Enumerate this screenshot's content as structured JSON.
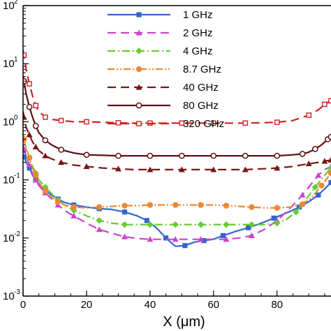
{
  "chart_data": {
    "type": "line",
    "title": "",
    "xlabel": "X (μm)",
    "ylabel": "",
    "x_scale": "linear",
    "y_scale": "log",
    "xlim": [
      0,
      97
    ],
    "ylim": [
      0.001,
      100
    ],
    "grid": false,
    "legend_position": "top-center",
    "x_ticks": [
      "0",
      "20",
      "40",
      "60",
      "80"
    ],
    "x_tick_values": [
      0,
      20,
      40,
      60,
      80
    ],
    "y_ticks": [
      "10",
      "10",
      "10",
      "10",
      "10",
      "10"
    ],
    "y_tick_exponents": [
      "-3",
      "-2",
      "-1",
      "0",
      "1",
      "2"
    ],
    "y_tick_values": [
      0.001,
      0.01,
      0.1,
      1,
      10,
      100
    ],
    "series": [
      {
        "name": "1 GHz",
        "color": "#3366cc",
        "dash": "solid",
        "marker": "square",
        "x": [
          0,
          0.3,
          1,
          2,
          3,
          4,
          5,
          7,
          9,
          11,
          13,
          16,
          20,
          24,
          28,
          32,
          36,
          39,
          42,
          45,
          48,
          51,
          54,
          57,
          60,
          63,
          67,
          71,
          75,
          79,
          83,
          87,
          90,
          93,
          95,
          97
        ],
        "y": [
          0.26,
          0.25,
          0.2,
          0.16,
          0.12,
          0.1,
          0.085,
          0.065,
          0.055,
          0.047,
          0.041,
          0.037,
          0.034,
          0.032,
          0.031,
          0.028,
          0.024,
          0.02,
          0.015,
          0.01,
          0.0072,
          0.0074,
          0.0085,
          0.009,
          0.0095,
          0.011,
          0.013,
          0.015,
          0.018,
          0.022,
          0.027,
          0.034,
          0.042,
          0.055,
          0.07,
          0.09
        ]
      },
      {
        "name": "2 GHz",
        "color": "#cc44cc",
        "dash": "dashed",
        "marker": "triangle",
        "x": [
          0,
          0.3,
          1,
          2,
          3,
          4,
          5,
          7,
          9,
          11,
          13,
          16,
          20,
          24,
          28,
          32,
          36,
          40,
          44,
          48,
          52,
          56,
          60,
          64,
          68,
          72,
          76,
          80,
          84,
          88,
          90,
          93,
          95,
          97
        ],
        "y": [
          0.38,
          0.34,
          0.25,
          0.18,
          0.13,
          0.1,
          0.08,
          0.06,
          0.047,
          0.037,
          0.03,
          0.024,
          0.018,
          0.014,
          0.012,
          0.0105,
          0.0098,
          0.0095,
          0.0095,
          0.0095,
          0.0095,
          0.0095,
          0.0095,
          0.0095,
          0.01,
          0.011,
          0.014,
          0.02,
          0.032,
          0.055,
          0.075,
          0.12,
          0.15,
          0.17
        ]
      },
      {
        "name": "4 GHz",
        "color": "#66cc33",
        "dash": "dashdot",
        "marker": "diamond",
        "x": [
          0,
          0.3,
          1,
          2,
          3,
          4,
          5,
          7,
          9,
          11,
          13,
          16,
          20,
          24,
          28,
          32,
          36,
          40,
          44,
          48,
          52,
          56,
          60,
          64,
          68,
          72,
          76,
          80,
          83,
          86,
          89,
          92,
          95,
          97
        ],
        "y": [
          0.55,
          0.5,
          0.35,
          0.24,
          0.17,
          0.13,
          0.1,
          0.075,
          0.058,
          0.045,
          0.037,
          0.03,
          0.024,
          0.02,
          0.018,
          0.017,
          0.017,
          0.017,
          0.017,
          0.017,
          0.017,
          0.017,
          0.017,
          0.017,
          0.017,
          0.017,
          0.017,
          0.018,
          0.021,
          0.028,
          0.045,
          0.075,
          0.12,
          0.16
        ]
      },
      {
        "name": "8.7 GHz",
        "color": "#ee8833",
        "dash": "dashdotdot",
        "marker": "circle",
        "x": [
          0,
          0.3,
          1,
          2,
          3,
          4,
          5,
          7,
          9,
          11,
          13,
          16,
          20,
          24,
          28,
          32,
          36,
          40,
          44,
          48,
          52,
          56,
          60,
          64,
          68,
          72,
          76,
          80,
          84,
          88,
          91,
          94,
          97
        ],
        "y": [
          0.55,
          0.5,
          0.35,
          0.24,
          0.16,
          0.12,
          0.09,
          0.065,
          0.05,
          0.042,
          0.037,
          0.034,
          0.033,
          0.034,
          0.035,
          0.036,
          0.036,
          0.037,
          0.037,
          0.037,
          0.037,
          0.037,
          0.037,
          0.036,
          0.035,
          0.034,
          0.033,
          0.033,
          0.034,
          0.038,
          0.05,
          0.08,
          0.13
        ]
      },
      {
        "name": "40 GHz",
        "color": "#7a1515",
        "dash": "dashed",
        "marker": "triangle",
        "x": [
          0,
          0.3,
          1,
          2,
          3,
          4,
          5,
          7,
          9,
          12,
          16,
          20,
          25,
          30,
          35,
          40,
          45,
          50,
          55,
          60,
          65,
          70,
          75,
          80,
          85,
          90,
          93,
          95,
          97
        ],
        "y": [
          1.5,
          1.2,
          0.8,
          0.6,
          0.45,
          0.37,
          0.32,
          0.26,
          0.23,
          0.2,
          0.18,
          0.17,
          0.16,
          0.155,
          0.15,
          0.15,
          0.15,
          0.15,
          0.15,
          0.15,
          0.15,
          0.15,
          0.155,
          0.16,
          0.17,
          0.19,
          0.2,
          0.21,
          0.22
        ]
      },
      {
        "name": "80 GHz",
        "color": "#5a1010",
        "dash": "solid",
        "marker": "circle-open",
        "x": [
          0,
          0.3,
          1,
          2,
          3,
          4,
          5,
          7,
          9,
          12,
          16,
          20,
          25,
          30,
          35,
          40,
          45,
          50,
          55,
          60,
          65,
          70,
          75,
          80,
          85,
          88,
          90,
          92,
          94,
          96,
          97
        ],
        "y": [
          6.0,
          5.0,
          3.0,
          1.8,
          1.2,
          0.85,
          0.65,
          0.48,
          0.4,
          0.33,
          0.29,
          0.27,
          0.265,
          0.26,
          0.26,
          0.26,
          0.26,
          0.26,
          0.26,
          0.26,
          0.26,
          0.26,
          0.26,
          0.26,
          0.27,
          0.28,
          0.3,
          0.34,
          0.4,
          0.5,
          0.55
        ]
      },
      {
        "name": "320 GHz",
        "color": "#d42020",
        "dash": "dashed",
        "marker": "square-open",
        "x": [
          0,
          0.3,
          1,
          2,
          3,
          4,
          5,
          7,
          9,
          12,
          16,
          20,
          25,
          30,
          35,
          40,
          45,
          50,
          55,
          60,
          65,
          70,
          75,
          80,
          85,
          90,
          93,
          95,
          97
        ],
        "y": [
          17,
          14,
          8,
          4.5,
          2.8,
          1.9,
          1.5,
          1.2,
          1.1,
          1.05,
          1.0,
          1.0,
          0.98,
          0.96,
          0.95,
          0.95,
          0.95,
          0.95,
          0.95,
          0.95,
          0.95,
          0.95,
          0.96,
          0.98,
          1.05,
          1.3,
          1.6,
          2.0,
          2.3
        ]
      }
    ]
  }
}
